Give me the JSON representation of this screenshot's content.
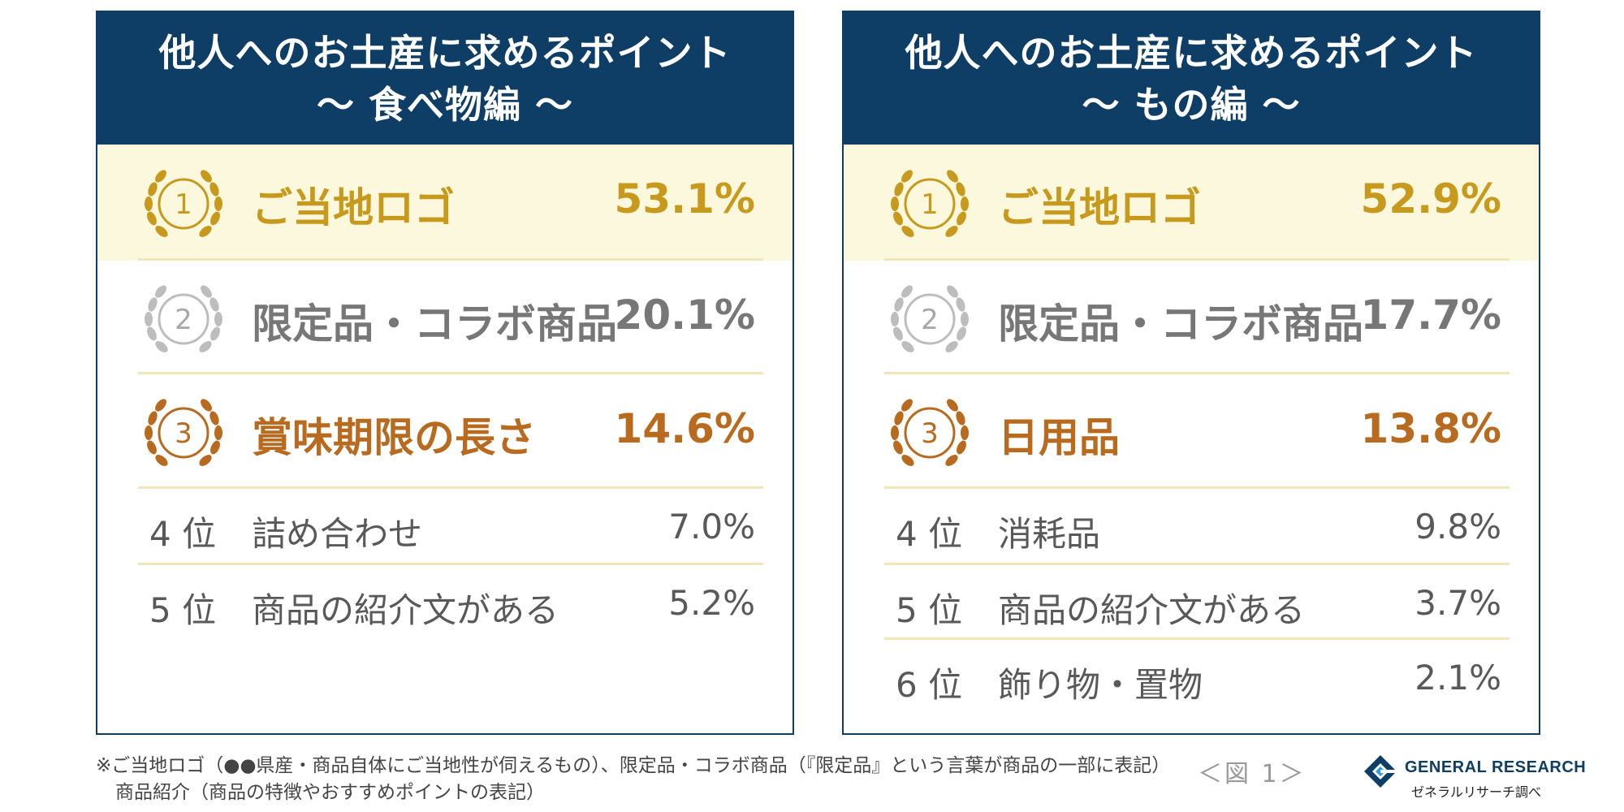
{
  "panels": [
    {
      "title_line1": "他人へのお土産に求めるポイント",
      "title_line2": "〜 食べ物編 〜",
      "top_ranks": [
        {
          "rank": "1",
          "label": "ご当地ロゴ",
          "value": "53.1%"
        },
        {
          "rank": "2",
          "label": "限定品・コラボ商品",
          "value": "20.1%"
        },
        {
          "rank": "3",
          "label": "賞味期限の長さ",
          "value": "14.6%"
        }
      ],
      "other_ranks": [
        {
          "rank": "4 位",
          "label": "詰め合わせ",
          "value": "7.0%"
        },
        {
          "rank": "5 位",
          "label": "商品の紹介文がある",
          "value": "5.2%"
        }
      ]
    },
    {
      "title_line1": "他人へのお土産に求めるポイント",
      "title_line2": "〜 もの編 〜",
      "top_ranks": [
        {
          "rank": "1",
          "label": "ご当地ロゴ",
          "value": "52.9%"
        },
        {
          "rank": "2",
          "label": "限定品・コラボ商品",
          "value": "17.7%"
        },
        {
          "rank": "3",
          "label": "日用品",
          "value": "13.8%"
        }
      ],
      "other_ranks": [
        {
          "rank": "4 位",
          "label": "消耗品",
          "value": "9.8%"
        },
        {
          "rank": "5 位",
          "label": "商品の紹介文がある",
          "value": "3.7%"
        },
        {
          "rank": "6 位",
          "label": "飾り物・置物",
          "value": "2.1%"
        }
      ]
    }
  ],
  "chart_data": [
    {
      "type": "table",
      "title": "他人へのお土産に求めるポイント 〜 食べ物編 〜",
      "categories": [
        "ご当地ロゴ",
        "限定品・コラボ商品",
        "賞味期限の長さ",
        "詰め合わせ",
        "商品の紹介文がある"
      ],
      "values": [
        53.1,
        20.1,
        14.6,
        7.0,
        5.2
      ],
      "unit": "%"
    },
    {
      "type": "table",
      "title": "他人へのお土産に求めるポイント 〜 もの編 〜",
      "categories": [
        "ご当地ロゴ",
        "限定品・コラボ商品",
        "日用品",
        "消耗品",
        "商品の紹介文がある",
        "飾り物・置物"
      ],
      "values": [
        52.9,
        17.7,
        13.8,
        9.8,
        3.7,
        2.1
      ],
      "unit": "%"
    }
  ],
  "colors": {
    "header": "#0e3e66",
    "gold": "#c79a1d",
    "silver": "#777777",
    "bronze": "#b86a1f",
    "highlight": "#fcf8dd"
  },
  "footnote": {
    "line1": "※ご当地ロゴ（●●県産・商品自体にご当地性が伺えるもの）、限定品・コラボ商品（『限定品』という言葉が商品の一部に表記）",
    "line2": "商品紹介（商品の特徴やおすすめポイントの表記）"
  },
  "figure_label": "＜図 1＞",
  "logo": {
    "name": "GENERAL RESEARCH",
    "sub": "ゼネラルリサーチ調べ",
    "icon": "general-research-logo-icon"
  }
}
